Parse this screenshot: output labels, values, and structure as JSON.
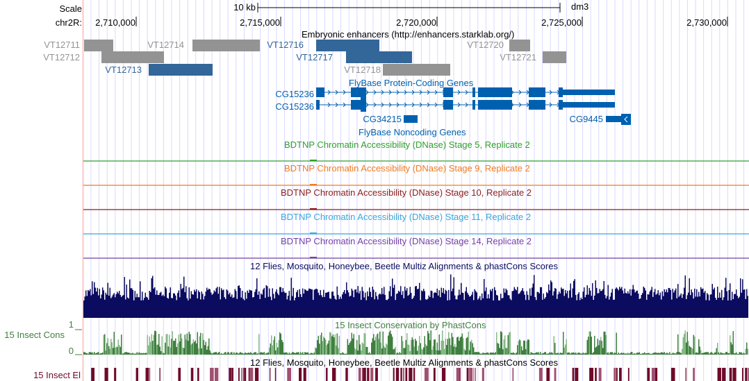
{
  "scale": {
    "label": "Scale",
    "bar_label": "10 kb",
    "assembly": "dm3"
  },
  "ruler": {
    "chrom_label": "chr2R:",
    "ticks": [
      "2,710,000",
      "2,715,000",
      "2,720,000",
      "2,725,000",
      "2,730,000"
    ]
  },
  "enhancers": {
    "title": "Embryonic enhancers (http://enhancers.starklab.org/)",
    "items": [
      "VT12711",
      "VT12712",
      "VT12713",
      "VT12714",
      "VT12716",
      "VT12717",
      "VT12718",
      "VT12720",
      "VT12721"
    ]
  },
  "genes": {
    "title": "FlyBase Protein-Coding Genes",
    "items": [
      "CG15236",
      "CG15236",
      "CG34215",
      "CG9445"
    ],
    "noncoding_title": "FlyBase Noncoding Genes"
  },
  "dnase": [
    {
      "title": "BDTNP Chromatin Accessibility (DNase) Stage 5, Replicate 2",
      "color": "#2f9e2f"
    },
    {
      "title": "BDTNP Chromatin Accessibility (DNase) Stage 9, Replicate 2",
      "color": "#f07a20"
    },
    {
      "title": "BDTNP Chromatin Accessibility (DNase) Stage 10, Replicate 2",
      "color": "#8c1c1c"
    },
    {
      "title": "BDTNP Chromatin Accessibility (DNase) Stage 11, Replicate 2",
      "color": "#3aa6dc"
    },
    {
      "title": "BDTNP Chromatin Accessibility (DNase) Stage 14, Replicate 2",
      "color": "#7540a8"
    }
  ],
  "multiz": {
    "title": "12 Flies, Mosquito, Honeybee, Beetle Multiz Alignments & phastCons Scores",
    "color": "#0b0b60"
  },
  "cons": {
    "title": "15 Insect Conservation by PhastCons",
    "label": "15 Insect Cons",
    "ymax": "1",
    "ymin": "0",
    "color": "#3f7f3f"
  },
  "elements": {
    "title": "12 Flies, Mosquito, Honeybee, Beetle Multiz Alignments & phastCons Scores",
    "label": "15 Insect El",
    "color": "#6e0a2a"
  },
  "colors": {
    "enhancer_active": "#336699",
    "enhancer_inactive": "#939393",
    "gene": "#0060b0",
    "grid": "#d9d9ff"
  }
}
